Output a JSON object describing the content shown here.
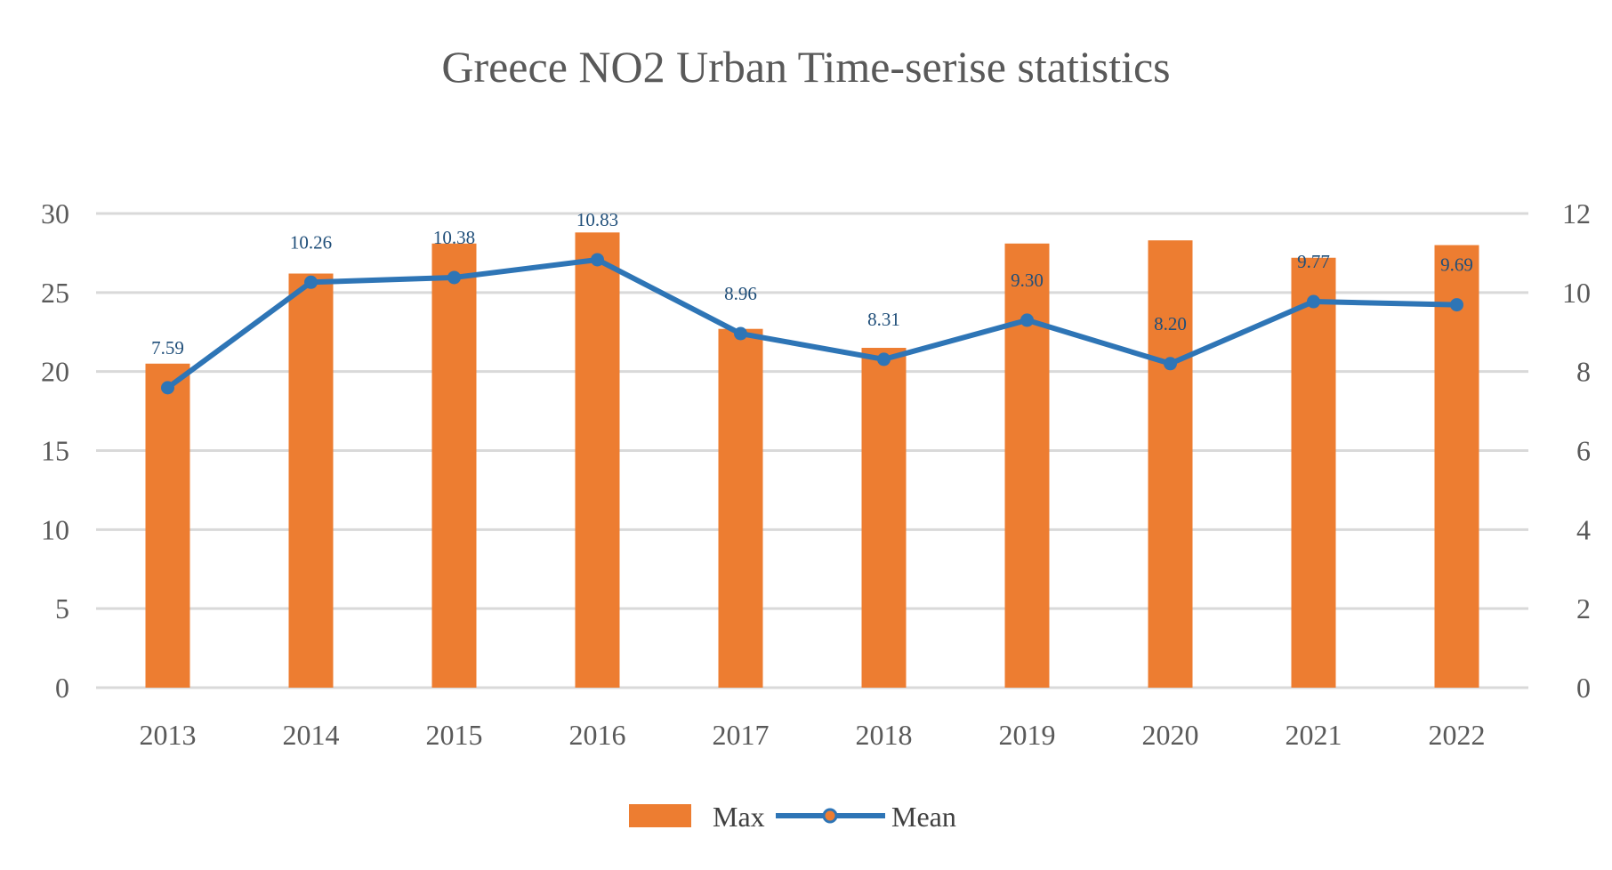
{
  "chart_data": {
    "type": "bar+line",
    "title": "Greece NO2 Urban Time-serise statistics",
    "categories": [
      "2013",
      "2014",
      "2015",
      "2016",
      "2017",
      "2018",
      "2019",
      "2020",
      "2021",
      "2022"
    ],
    "series": [
      {
        "name": "Max",
        "type": "bar",
        "axis": "left",
        "color": "#ed7d31",
        "values": [
          20.5,
          26.2,
          28.1,
          28.8,
          22.7,
          21.5,
          28.1,
          28.3,
          27.2,
          28.0
        ]
      },
      {
        "name": "Mean",
        "type": "line",
        "axis": "right",
        "color": "#2e75b6",
        "values": [
          7.59,
          10.26,
          10.38,
          10.83,
          8.96,
          8.31,
          9.3,
          8.2,
          9.77,
          9.69
        ],
        "data_labels": [
          "7.59",
          "10.26",
          "10.38",
          "10.83",
          "8.96",
          "8.31",
          "9.30",
          "8.20",
          "9.77",
          "9.69"
        ]
      }
    ],
    "y_left": {
      "min": 0,
      "max": 30,
      "ticks": [
        "0",
        "5",
        "10",
        "15",
        "20",
        "25",
        "30"
      ]
    },
    "y_right": {
      "min": 0,
      "max": 12,
      "ticks": [
        "0",
        "2",
        "4",
        "6",
        "8",
        "10",
        "12"
      ]
    },
    "grid": true,
    "legend_position": "bottom"
  }
}
